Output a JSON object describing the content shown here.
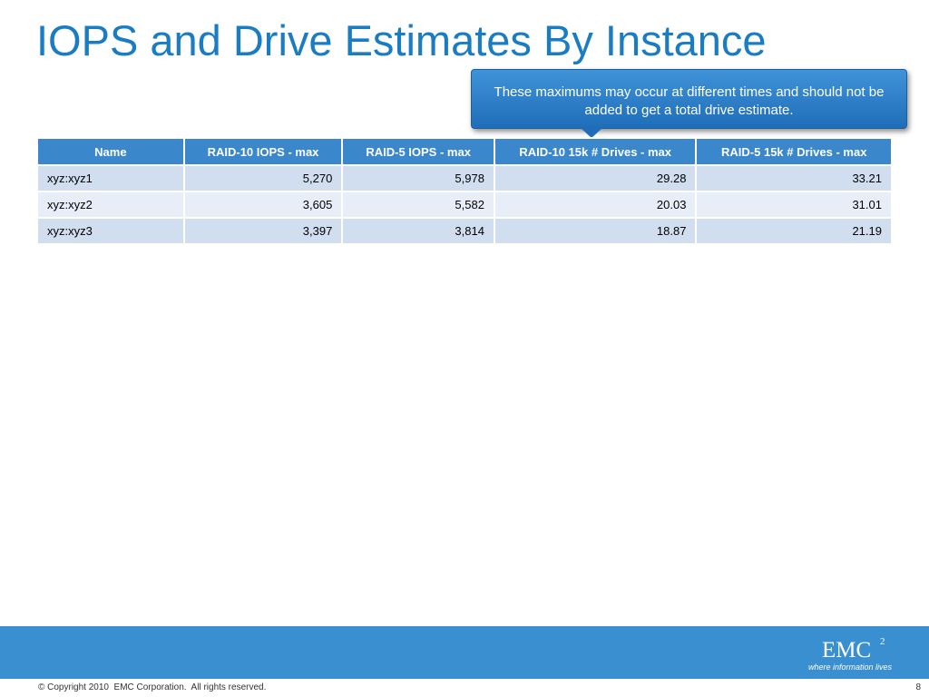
{
  "slide": {
    "title": "IOPS and Drive Estimates By Instance",
    "callout": "These maximums may occur at different times and should not be added to get a total drive estimate."
  },
  "table": {
    "headers": [
      "Name",
      "RAID-10 IOPS - max",
      "RAID-5 IOPS - max",
      "RAID-10 15k # Drives - max",
      "RAID-5 15k # Drives - max"
    ],
    "rows": [
      [
        "xyz:xyz1",
        "5,270",
        "5,978",
        "29.28",
        "33.21"
      ],
      [
        "xyz:xyz2",
        "3,605",
        "5,582",
        "20.03",
        "31.01"
      ],
      [
        "xyz:xyz3",
        "3,397",
        "3,814",
        "18.87",
        "21.19"
      ]
    ]
  },
  "footer": {
    "logo_text": "EMC",
    "logo_superscript": "2",
    "logo_tagline": "where information lives",
    "copyright": "© Copyright 2010  EMC Corporation.  All rights reserved.",
    "page_number": "8"
  },
  "colors": {
    "title": "#1a7dc4",
    "header_bg": "#3b87cc",
    "row_odd": "#d0deef",
    "row_even": "#e8eef7",
    "footer_band": "#3a8fd0"
  }
}
